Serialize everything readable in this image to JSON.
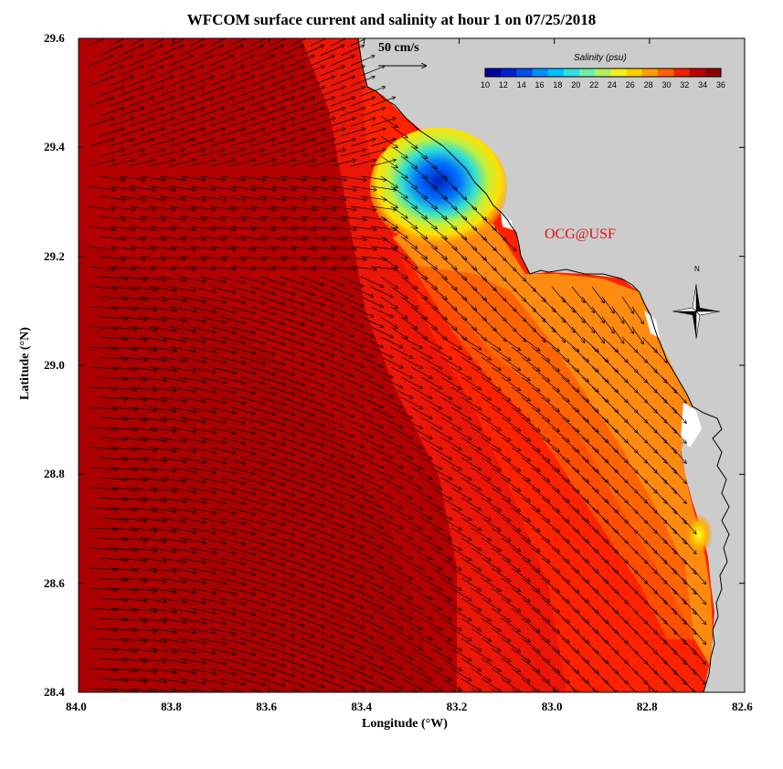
{
  "title": "WFCOM surface current and salinity at hour 1 on 07/25/2018",
  "watermark": "OCG@USF",
  "scale_label": "50 cm/s",
  "colorbar": {
    "title": "Salinity (psu)",
    "ticks": [
      "10",
      "12",
      "14",
      "16",
      "18",
      "20",
      "22",
      "24",
      "26",
      "28",
      "30",
      "32",
      "34",
      "36"
    ],
    "colors": [
      "#0000a0",
      "#0020d0",
      "#0050f0",
      "#0090ff",
      "#00c0ff",
      "#30e0e0",
      "#70f0a0",
      "#b0f060",
      "#f0f020",
      "#ffd000",
      "#ff9a00",
      "#ff6000",
      "#f02000",
      "#c00000",
      "#900000"
    ]
  },
  "axes": {
    "xlabel": "Longitude (°W)",
    "ylabel": "Latitude (°N)",
    "xticks": [
      "84.0",
      "83.8",
      "83.6",
      "83.4",
      "83.2",
      "83.0",
      "82.8",
      "82.6"
    ],
    "yticks": [
      "29.6",
      "29.4",
      "29.2",
      "29.0",
      "28.8",
      "28.6",
      "28.4"
    ]
  },
  "north_label": "N",
  "colors": {
    "land": "#cccccc",
    "deep": "#b00000",
    "mid": "#e01008",
    "shelf": "#ff2a00",
    "coastal": "#ff8c10",
    "fresh": "#0030e0",
    "arrow": "#000000",
    "watermark": "#e01010"
  }
}
